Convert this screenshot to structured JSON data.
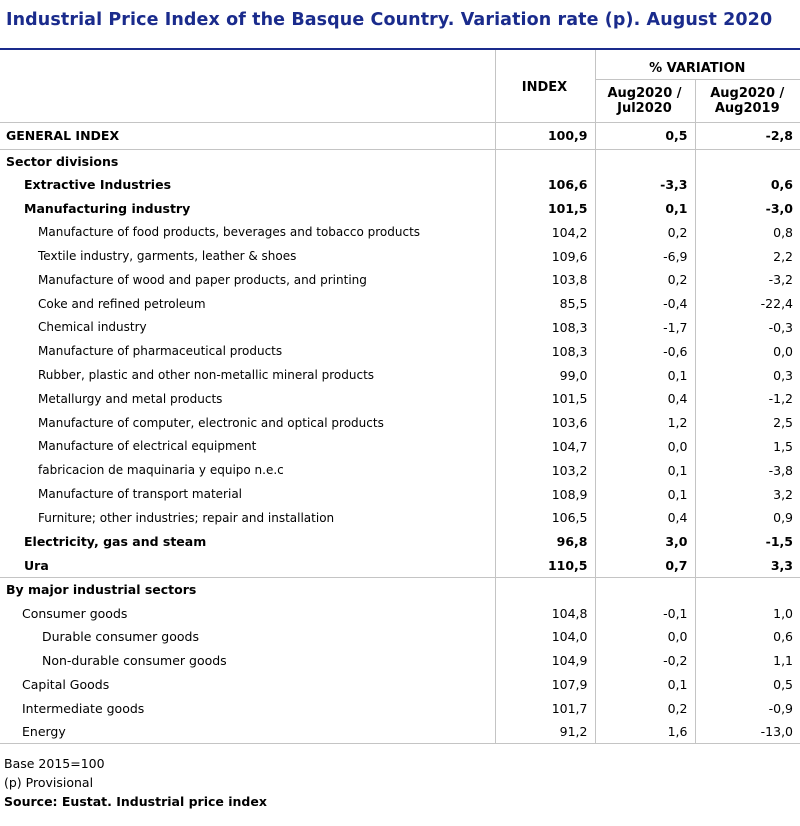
{
  "title": "Industrial Price Index of the Basque Country. Variation rate (p). August 2020",
  "header": {
    "index": "INDEX",
    "variation": "% VARIATION",
    "col_month_line1": "Aug2020 /",
    "col_month_line2": "Jul2020",
    "col_year_line1": "Aug2020 /",
    "col_year_line2": "Aug2019"
  },
  "general": {
    "label": "GENERAL INDEX",
    "index": "100,9",
    "monthly": "0,5",
    "annual": "-2,8"
  },
  "sector_divisions_label": "Sector divisions",
  "sectors": [
    {
      "label": "Extractive Industries",
      "index": "106,6",
      "monthly": "-3,3",
      "annual": "0,6",
      "level": 1,
      "bold": true
    },
    {
      "label": "Manufacturing industry",
      "index": "101,5",
      "monthly": "0,1",
      "annual": "-3,0",
      "level": 1,
      "bold": true
    },
    {
      "label": "Manufacture of food products, beverages and tobacco products",
      "index": "104,2",
      "monthly": "0,2",
      "annual": "0,8",
      "level": 2,
      "bold": false
    },
    {
      "label": "Textile industry, garments, leather & shoes",
      "index": "109,6",
      "monthly": "-6,9",
      "annual": "2,2",
      "level": 2,
      "bold": false
    },
    {
      "label": "Manufacture of wood and paper products, and printing",
      "index": "103,8",
      "monthly": "0,2",
      "annual": "-3,2",
      "level": 2,
      "bold": false
    },
    {
      "label": "Coke and refined petroleum",
      "index": "85,5",
      "monthly": "-0,4",
      "annual": "-22,4",
      "level": 2,
      "bold": false
    },
    {
      "label": "Chemical industry",
      "index": "108,3",
      "monthly": "-1,7",
      "annual": "-0,3",
      "level": 2,
      "bold": false
    },
    {
      "label": "Manufacture of pharmaceutical products",
      "index": "108,3",
      "monthly": "-0,6",
      "annual": "0,0",
      "level": 2,
      "bold": false
    },
    {
      "label": "Rubber, plastic and other non-metallic mineral products",
      "index": "99,0",
      "monthly": "0,1",
      "annual": "0,3",
      "level": 2,
      "bold": false
    },
    {
      "label": "Metallurgy and metal products",
      "index": "101,5",
      "monthly": "0,4",
      "annual": "-1,2",
      "level": 2,
      "bold": false
    },
    {
      "label": "Manufacture of computer, electronic and optical products",
      "index": "103,6",
      "monthly": "1,2",
      "annual": "2,5",
      "level": 2,
      "bold": false
    },
    {
      "label": "Manufacture of electrical equipment",
      "index": "104,7",
      "monthly": "0,0",
      "annual": "1,5",
      "level": 2,
      "bold": false
    },
    {
      "label": "fabricacion de maquinaria y equipo n.e.c",
      "index": "103,2",
      "monthly": "0,1",
      "annual": "-3,8",
      "level": 2,
      "bold": false
    },
    {
      "label": "Manufacture of transport material",
      "index": "108,9",
      "monthly": "0,1",
      "annual": "3,2",
      "level": 2,
      "bold": false
    },
    {
      "label": "Furniture; other industries; repair and installation",
      "index": "106,5",
      "monthly": "0,4",
      "annual": "0,9",
      "level": 2,
      "bold": false
    },
    {
      "label": "Electricity, gas and steam",
      "index": "96,8",
      "monthly": "3,0",
      "annual": "-1,5",
      "level": 1,
      "bold": true
    },
    {
      "label": "Ura",
      "index": "110,5",
      "monthly": "0,7",
      "annual": "3,3",
      "level": 1,
      "bold": true
    }
  ],
  "major_sectors_label": "By major industrial sectors",
  "major_sectors": [
    {
      "label": "Consumer goods",
      "index": "104,8",
      "monthly": "-0,1",
      "annual": "1,0",
      "level": 1
    },
    {
      "label": "Durable consumer goods",
      "index": "104,0",
      "monthly": "0,0",
      "annual": "0,6",
      "level": 2
    },
    {
      "label": "Non-durable consumer goods",
      "index": "104,9",
      "monthly": "-0,2",
      "annual": "1,1",
      "level": 2
    },
    {
      "label": "Capital Goods",
      "index": "107,9",
      "monthly": "0,1",
      "annual": "0,5",
      "level": 1
    },
    {
      "label": "Intermediate goods",
      "index": "101,7",
      "monthly": "0,2",
      "annual": "-0,9",
      "level": 1
    },
    {
      "label": "Energy",
      "index": "91,2",
      "monthly": "1,6",
      "annual": "-13,0",
      "level": 1
    }
  ],
  "footnotes": {
    "base": "Base 2015=100",
    "provisional": "(p) Provisional",
    "source": "Source: Eustat. Industrial price index"
  },
  "colors": {
    "title": "#1a2b8c",
    "grid": "#c4c4c4"
  }
}
